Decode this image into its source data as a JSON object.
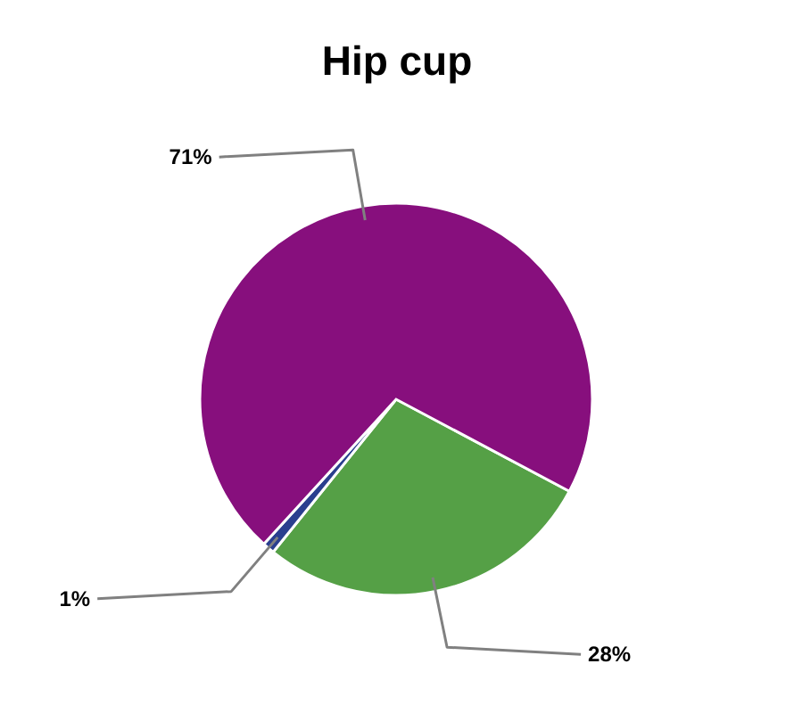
{
  "chart_data": {
    "type": "pie",
    "title": "Hip cup",
    "categories": [
      null,
      null,
      null
    ],
    "values": [
      28,
      1,
      71
    ],
    "colors": [
      "#55a046",
      "#2a3f8f",
      "#870f7d"
    ],
    "value_labels": [
      "28%",
      "1%",
      "71%"
    ],
    "legend": false
  }
}
